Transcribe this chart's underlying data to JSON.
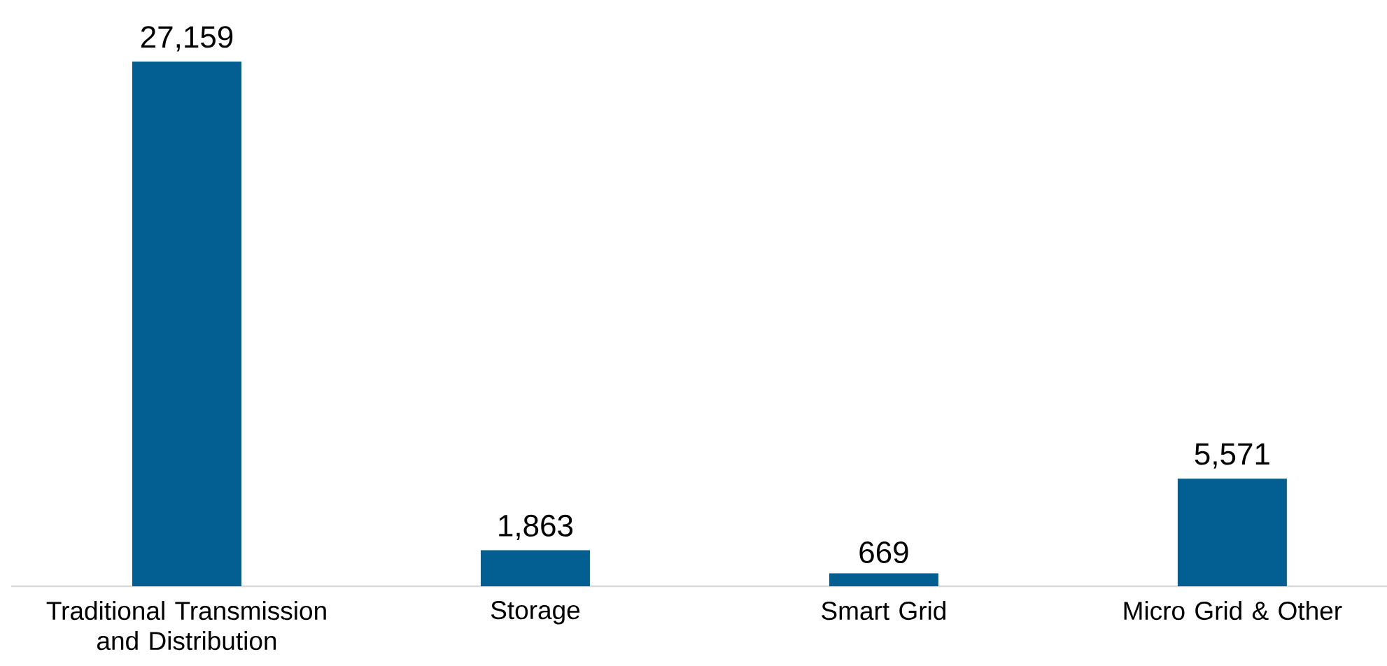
{
  "chart_data": {
    "type": "bar",
    "categories": [
      "Traditional Transmission and Distribution",
      "Storage",
      "Smart Grid",
      "Micro Grid & Other"
    ],
    "values": [
      27159,
      1863,
      669,
      5571
    ],
    "value_labels": [
      "27,159",
      "1,863",
      "669",
      "5,571"
    ],
    "color": "#035f91"
  }
}
